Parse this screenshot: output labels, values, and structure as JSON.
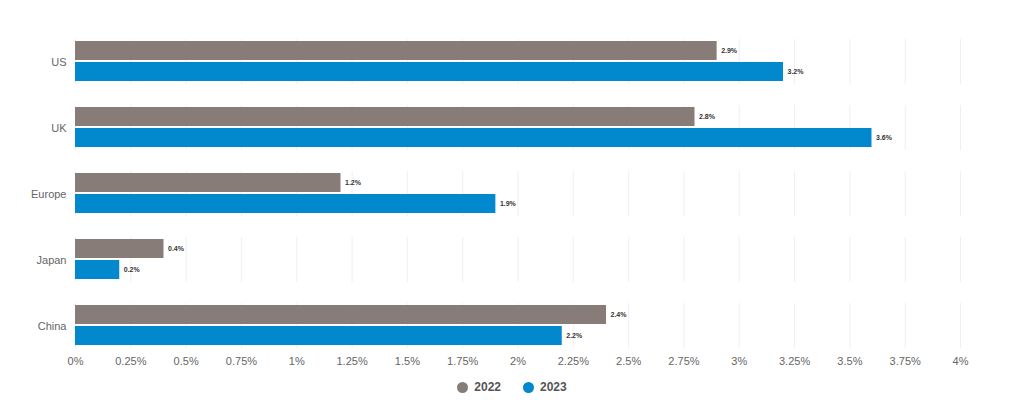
{
  "chart_data": {
    "type": "bar",
    "orientation": "horizontal",
    "categories": [
      "US",
      "UK",
      "Europe",
      "Japan",
      "China"
    ],
    "series": [
      {
        "name": "2022",
        "color": "#877c78",
        "values": [
          2.9,
          2.8,
          1.2,
          0.4,
          2.4
        ],
        "value_labels": [
          "2.9%",
          "2.8%",
          "1.2%",
          "0.4%",
          "2.4%"
        ]
      },
      {
        "name": "2023",
        "color": "#0288cc",
        "values": [
          3.2,
          3.6,
          1.9,
          0.2,
          2.2
        ],
        "value_labels": [
          "3.2%",
          "3.6%",
          "1.9%",
          "0.2%",
          "2.2%"
        ]
      }
    ],
    "xlim": [
      0,
      4
    ],
    "xticks": [
      {
        "value": 0,
        "label": "0%"
      },
      {
        "value": 0.25,
        "label": "0.25%"
      },
      {
        "value": 0.5,
        "label": "0.5%"
      },
      {
        "value": 0.75,
        "label": "0.75%"
      },
      {
        "value": 1,
        "label": "1%"
      },
      {
        "value": 1.25,
        "label": "1.25%"
      },
      {
        "value": 1.5,
        "label": "1.5%"
      },
      {
        "value": 1.75,
        "label": "1.75%"
      },
      {
        "value": 2,
        "label": "2%"
      },
      {
        "value": 2.25,
        "label": "2.25%"
      },
      {
        "value": 2.5,
        "label": "2.5%"
      },
      {
        "value": 2.75,
        "label": "2.75%"
      },
      {
        "value": 3,
        "label": "3%"
      },
      {
        "value": 3.25,
        "label": "3.25%"
      },
      {
        "value": 3.5,
        "label": "3.5%"
      },
      {
        "value": 3.75,
        "label": "3.75%"
      },
      {
        "value": 4,
        "label": "4%"
      }
    ],
    "grid": true,
    "data_labels": true,
    "legend": "bottom"
  }
}
